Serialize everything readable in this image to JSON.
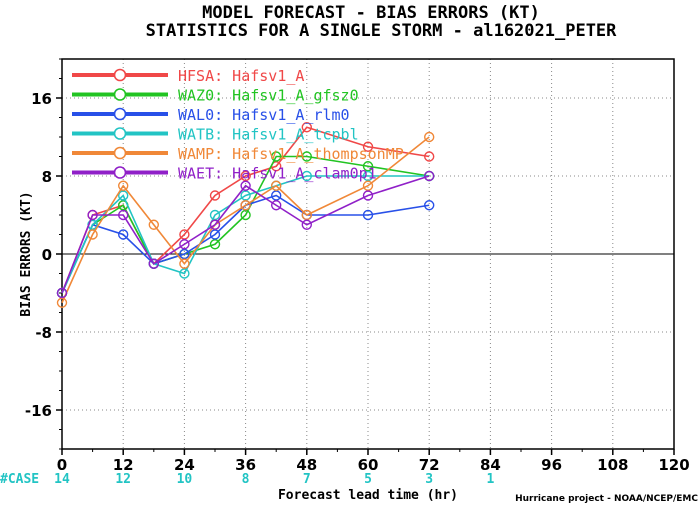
{
  "header": {
    "title_line1": "MODEL FORECAST - BIAS ERRORS (KT)",
    "title_line2": "STATISTICS FOR A SINGLE STORM - al162021_PETER"
  },
  "footer": {
    "case_label": "#CASE",
    "case_counts": [
      "14",
      "12",
      "10",
      "8",
      "7",
      "5",
      "3",
      "1"
    ],
    "credit": "Hurricane project - NOAA/NCEP/EMC"
  },
  "colors": {
    "case_text": "#22c4c4",
    "axis": "#000000",
    "grid": "#888888"
  },
  "chart_data": {
    "type": "line",
    "xlabel": "Forecast lead time (hr)",
    "ylabel": "BIAS ERRORS (KT)",
    "xlim": [
      0,
      120
    ],
    "ylim": [
      -20,
      20
    ],
    "xticks": [
      0,
      12,
      24,
      36,
      48,
      60,
      72,
      84,
      96,
      108,
      120
    ],
    "yticks": [
      -16,
      -8,
      0,
      8,
      16
    ],
    "grid": true,
    "legend_position": "top-left",
    "x": [
      0,
      6,
      12,
      18,
      24,
      30,
      36,
      42,
      48,
      60,
      72
    ],
    "series": [
      {
        "name": "HFSA: Hafsv1_A",
        "color": "#f04848",
        "values": [
          -4,
          4,
          5,
          -1,
          2,
          6,
          8,
          9,
          13,
          11,
          10
        ]
      },
      {
        "name": "WAZ0: Hafsv1_A_gfsz0",
        "color": "#22c422",
        "values": [
          -4,
          3,
          5,
          -1,
          0,
          1,
          4,
          10,
          10,
          9,
          8
        ]
      },
      {
        "name": "WAL0: Hafsv1_A_rlm0",
        "color": "#2850e8",
        "values": [
          -4,
          3,
          2,
          -1,
          0,
          2,
          5,
          6,
          4,
          4,
          5
        ]
      },
      {
        "name": "WATB: Hafsv1_A_tcpbl",
        "color": "#22c4c4",
        "values": [
          -4,
          3,
          6,
          -1,
          -2,
          4,
          6,
          7,
          8,
          8,
          8
        ]
      },
      {
        "name": "WAMP: Hafsv1_A_thompsonMP",
        "color": "#f08838",
        "values": [
          -5,
          2,
          7,
          3,
          -1,
          3,
          5,
          7,
          4,
          7,
          12
        ]
      },
      {
        "name": "WAET: Hafsv1_A_clam0p1",
        "color": "#9020c8",
        "values": [
          -4,
          4,
          4,
          -1,
          1,
          3,
          7,
          5,
          3,
          6,
          8
        ]
      }
    ]
  }
}
